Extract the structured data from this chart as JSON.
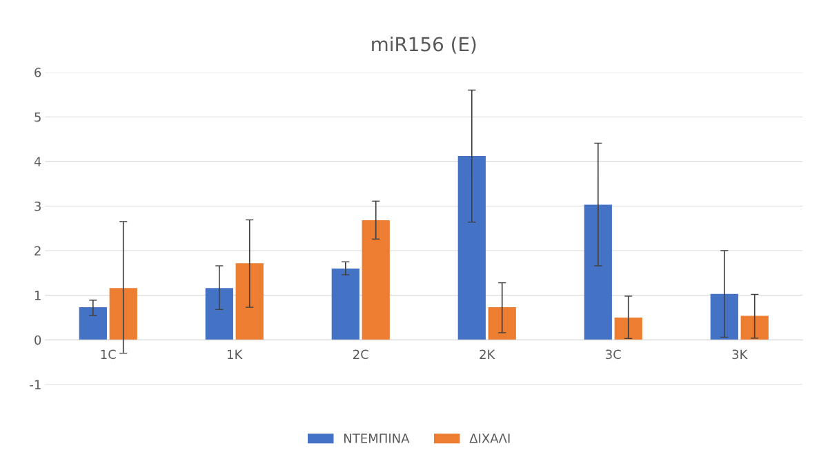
{
  "chart_data": {
    "type": "bar",
    "title": "miR156 (E)",
    "categories": [
      "1C",
      "1K",
      "2C",
      "2K",
      "3C",
      "3K"
    ],
    "series": [
      {
        "name": "ΝΤΕΜΠΙΝΑ",
        "color": "#4472c4",
        "values": [
          0.73,
          1.16,
          1.6,
          4.12,
          3.03,
          1.03
        ],
        "errors": [
          [
            0.55,
            0.89
          ],
          [
            0.68,
            1.66
          ],
          [
            1.46,
            1.75
          ],
          [
            2.64,
            5.6
          ],
          [
            1.66,
            4.41
          ],
          [
            0.06,
            2.0
          ]
        ]
      },
      {
        "name": "ΔΙΧΑΛΙ",
        "color": "#ed7d31",
        "values": [
          1.16,
          1.72,
          2.68,
          0.73,
          0.5,
          0.54
        ],
        "errors": [
          [
            -0.3,
            2.65
          ],
          [
            0.73,
            2.69
          ],
          [
            2.26,
            3.11
          ],
          [
            0.16,
            1.28
          ],
          [
            0.03,
            0.98
          ],
          [
            0.04,
            1.02
          ]
        ]
      }
    ],
    "ylim": [
      -1,
      6
    ],
    "yticks": [
      -1,
      0,
      1,
      2,
      3,
      4,
      5,
      6
    ],
    "grid": "y",
    "legend": "bottom"
  }
}
